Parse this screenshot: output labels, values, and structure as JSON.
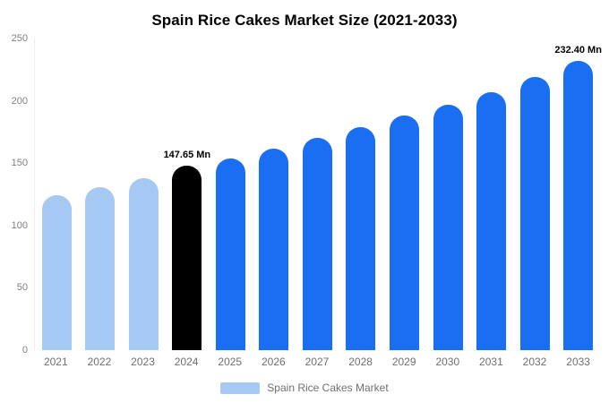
{
  "chart_data": {
    "type": "bar",
    "title": "Spain Rice Cakes Market Size (2021-2033)",
    "categories": [
      "2021",
      "2022",
      "2023",
      "2024",
      "2025",
      "2026",
      "2027",
      "2028",
      "2029",
      "2030",
      "2031",
      "2032",
      "2033"
    ],
    "values": [
      124,
      131,
      138,
      147.65,
      154,
      162,
      170,
      179,
      188,
      197,
      207,
      219,
      232.4
    ],
    "unit": "Mn",
    "ylim": [
      0,
      250
    ],
    "yticks": [
      0,
      50,
      100,
      150,
      200,
      250
    ],
    "grid": false,
    "bar_colors": [
      "#a6c9f3",
      "#a6c9f3",
      "#a6c9f3",
      "#000000",
      "#1a6ef2",
      "#1a6ef2",
      "#1a6ef2",
      "#1a6ef2",
      "#1a6ef2",
      "#1a6ef2",
      "#1a6ef2",
      "#1a6ef2",
      "#1a6ef2"
    ],
    "annotations": [
      {
        "index": 3,
        "text": "147.65 Mn"
      },
      {
        "index": 12,
        "text": "232.40 Mn"
      }
    ],
    "legend": [
      {
        "label": "Spain Rice Cakes Market",
        "color": "#a6c9f3"
      }
    ],
    "colors": {
      "light_blue": "#a6c9f3",
      "blue": "#1a6ef2",
      "black": "#000000",
      "axis_text": "#808080"
    }
  }
}
